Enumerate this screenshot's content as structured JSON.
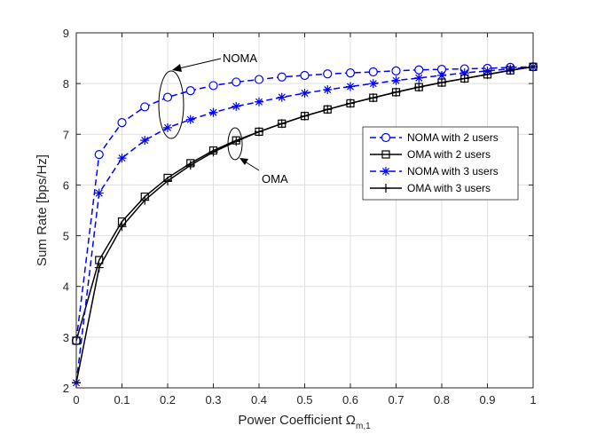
{
  "chart_data": {
    "type": "line",
    "title": "",
    "xlabel": "Power Coefficient",
    "xlabel_symbol": "Ω",
    "xlabel_subscript": "m,1",
    "ylabel": "Sum Rate [bps/Hz]",
    "xlim": [
      0,
      1
    ],
    "ylim": [
      2,
      9
    ],
    "xticks": [
      "0",
      "0.1",
      "0.2",
      "0.3",
      "0.4",
      "0.5",
      "0.6",
      "0.7",
      "0.8",
      "0.9",
      "1"
    ],
    "yticks": [
      "2",
      "3",
      "4",
      "5",
      "6",
      "7",
      "8",
      "9"
    ],
    "grid": true,
    "legend_position": "right",
    "x": [
      0,
      0.05,
      0.1,
      0.15,
      0.2,
      0.25,
      0.3,
      0.35,
      0.4,
      0.45,
      0.5,
      0.55,
      0.6,
      0.65,
      0.7,
      0.75,
      0.8,
      0.85,
      0.9,
      0.95,
      1.0
    ],
    "series": [
      {
        "name": "NOMA with 2 users",
        "color": "#0000ff",
        "line": "dashed",
        "marker": "circle",
        "values": [
          2.93,
          6.6,
          7.23,
          7.54,
          7.73,
          7.86,
          7.96,
          8.03,
          8.08,
          8.13,
          8.16,
          8.19,
          8.21,
          8.23,
          8.25,
          8.27,
          8.28,
          8.29,
          8.3,
          8.32,
          8.33
        ]
      },
      {
        "name": "OMA with 2 users",
        "color": "#000000",
        "line": "solid",
        "marker": "square",
        "values": [
          2.93,
          4.52,
          5.28,
          5.77,
          6.14,
          6.43,
          6.68,
          6.88,
          7.05,
          7.21,
          7.36,
          7.49,
          7.61,
          7.72,
          7.83,
          7.93,
          8.02,
          8.1,
          8.18,
          8.26,
          8.33
        ]
      },
      {
        "name": "NOMA with 3 users",
        "color": "#0000ff",
        "line": "dashed",
        "marker": "asterisk",
        "values": [
          2.1,
          5.84,
          6.53,
          6.88,
          7.13,
          7.29,
          7.43,
          7.55,
          7.64,
          7.73,
          7.81,
          7.88,
          7.94,
          8.0,
          8.06,
          8.11,
          8.16,
          8.21,
          8.25,
          8.29,
          8.33
        ]
      },
      {
        "name": "OMA with 3 users",
        "color": "#000000",
        "line": "solid",
        "marker": "plus",
        "values": [
          2.1,
          4.37,
          5.18,
          5.7,
          6.08,
          6.39,
          6.65,
          6.86,
          7.05,
          7.21,
          7.36,
          7.49,
          7.61,
          7.72,
          7.83,
          7.93,
          8.02,
          8.1,
          8.18,
          8.26,
          8.33
        ]
      }
    ],
    "annotations": [
      {
        "text": "NOMA",
        "x": 0.3,
        "y": 8.45
      },
      {
        "text": "OMA",
        "x": 0.44,
        "y": 6.05
      }
    ]
  }
}
